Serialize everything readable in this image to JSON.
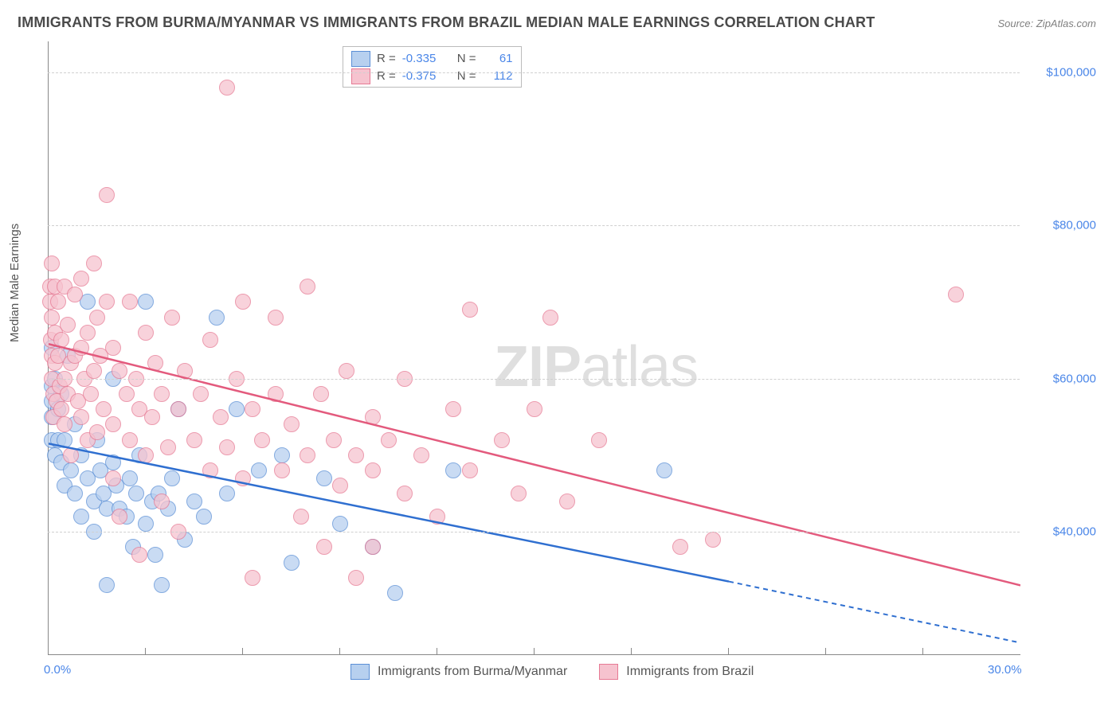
{
  "title": "IMMIGRANTS FROM BURMA/MYANMAR VS IMMIGRANTS FROM BRAZIL MEDIAN MALE EARNINGS CORRELATION CHART",
  "source": "Source: ZipAtlas.com",
  "ylabel": "Median Male Earnings",
  "watermark_left": "ZIP",
  "watermark_right": "atlas",
  "chart": {
    "type": "scatter",
    "xlim": [
      0,
      30
    ],
    "ylim": [
      24000,
      104000
    ],
    "ytick_values": [
      40000,
      60000,
      80000,
      100000
    ],
    "ytick_labels": [
      "$40,000",
      "$60,000",
      "$80,000",
      "$100,000"
    ],
    "xtick_min_label": "0.0%",
    "xtick_max_label": "30.0%",
    "xminor_positions": [
      3,
      6,
      9,
      12,
      15,
      18,
      21,
      24,
      27
    ],
    "grid_color": "#d0d0d0",
    "axis_color": "#888888",
    "background_color": "#ffffff",
    "tick_label_color": "#4a86e8",
    "point_radius": 9
  },
  "series": [
    {
      "key": "burma",
      "label": "Immigrants from Burma/Myanmar",
      "fill": "#b7d0ef",
      "stroke": "#5b8fd6",
      "line_color": "#2f6fd0",
      "R": "-0.335",
      "N": "61",
      "trend": {
        "x1": 0,
        "y1": 51500,
        "x2": 21,
        "y2": 33500,
        "x_dash_to": 30,
        "y_dash_to": 25500
      },
      "points": [
        [
          0.1,
          64000
        ],
        [
          0.1,
          59000
        ],
        [
          0.1,
          57000
        ],
        [
          0.1,
          55000
        ],
        [
          0.1,
          52000
        ],
        [
          0.2,
          50000
        ],
        [
          0.2,
          60000
        ],
        [
          0.3,
          56000
        ],
        [
          0.3,
          52000
        ],
        [
          0.4,
          58000
        ],
        [
          0.4,
          49000
        ],
        [
          0.5,
          52000
        ],
        [
          0.5,
          46000
        ],
        [
          0.6,
          63000
        ],
        [
          0.7,
          48000
        ],
        [
          0.8,
          54000
        ],
        [
          0.8,
          45000
        ],
        [
          1.0,
          50000
        ],
        [
          1.0,
          42000
        ],
        [
          1.2,
          70000
        ],
        [
          1.2,
          47000
        ],
        [
          1.4,
          44000
        ],
        [
          1.4,
          40000
        ],
        [
          1.5,
          52000
        ],
        [
          1.6,
          48000
        ],
        [
          1.7,
          45000
        ],
        [
          1.8,
          43000
        ],
        [
          1.8,
          33000
        ],
        [
          2.0,
          60000
        ],
        [
          2.0,
          49000
        ],
        [
          2.1,
          46000
        ],
        [
          2.2,
          43000
        ],
        [
          2.4,
          42000
        ],
        [
          2.5,
          47000
        ],
        [
          2.6,
          38000
        ],
        [
          2.7,
          45000
        ],
        [
          2.8,
          50000
        ],
        [
          3.0,
          70000
        ],
        [
          3.0,
          41000
        ],
        [
          3.2,
          44000
        ],
        [
          3.3,
          37000
        ],
        [
          3.4,
          45000
        ],
        [
          3.5,
          33000
        ],
        [
          3.7,
          43000
        ],
        [
          3.8,
          47000
        ],
        [
          4.0,
          56000
        ],
        [
          4.2,
          39000
        ],
        [
          4.5,
          44000
        ],
        [
          4.8,
          42000
        ],
        [
          5.2,
          68000
        ],
        [
          5.5,
          45000
        ],
        [
          5.8,
          56000
        ],
        [
          6.5,
          48000
        ],
        [
          7.2,
          50000
        ],
        [
          7.5,
          36000
        ],
        [
          8.5,
          47000
        ],
        [
          9.0,
          41000
        ],
        [
          10.0,
          38000
        ],
        [
          10.7,
          32000
        ],
        [
          12.5,
          48000
        ],
        [
          19.0,
          48000
        ]
      ]
    },
    {
      "key": "brazil",
      "label": "Immigrants from Brazil",
      "fill": "#f6c3cf",
      "stroke": "#e67a94",
      "line_color": "#e35a7d",
      "R": "-0.375",
      "N": "112",
      "trend": {
        "x1": 0,
        "y1": 64500,
        "x2": 30,
        "y2": 33000
      },
      "points": [
        [
          0.05,
          72000
        ],
        [
          0.05,
          70000
        ],
        [
          0.08,
          65000
        ],
        [
          0.1,
          75000
        ],
        [
          0.1,
          68000
        ],
        [
          0.1,
          63000
        ],
        [
          0.1,
          60000
        ],
        [
          0.15,
          58000
        ],
        [
          0.15,
          55000
        ],
        [
          0.2,
          72000
        ],
        [
          0.2,
          66000
        ],
        [
          0.2,
          62000
        ],
        [
          0.25,
          57000
        ],
        [
          0.3,
          70000
        ],
        [
          0.3,
          63000
        ],
        [
          0.35,
          59000
        ],
        [
          0.4,
          65000
        ],
        [
          0.4,
          56000
        ],
        [
          0.5,
          72000
        ],
        [
          0.5,
          60000
        ],
        [
          0.5,
          54000
        ],
        [
          0.6,
          67000
        ],
        [
          0.6,
          58000
        ],
        [
          0.7,
          62000
        ],
        [
          0.7,
          50000
        ],
        [
          0.8,
          71000
        ],
        [
          0.8,
          63000
        ],
        [
          0.9,
          57000
        ],
        [
          1.0,
          73000
        ],
        [
          1.0,
          64000
        ],
        [
          1.0,
          55000
        ],
        [
          1.1,
          60000
        ],
        [
          1.2,
          66000
        ],
        [
          1.2,
          52000
        ],
        [
          1.3,
          58000
        ],
        [
          1.4,
          75000
        ],
        [
          1.4,
          61000
        ],
        [
          1.5,
          68000
        ],
        [
          1.5,
          53000
        ],
        [
          1.6,
          63000
        ],
        [
          1.7,
          56000
        ],
        [
          1.8,
          70000
        ],
        [
          1.8,
          84000
        ],
        [
          2.0,
          64000
        ],
        [
          2.0,
          54000
        ],
        [
          2.0,
          47000
        ],
        [
          2.2,
          61000
        ],
        [
          2.2,
          42000
        ],
        [
          2.4,
          58000
        ],
        [
          2.5,
          70000
        ],
        [
          2.5,
          52000
        ],
        [
          2.7,
          60000
        ],
        [
          2.8,
          56000
        ],
        [
          2.8,
          37000
        ],
        [
          3.0,
          66000
        ],
        [
          3.0,
          50000
        ],
        [
          3.2,
          55000
        ],
        [
          3.3,
          62000
        ],
        [
          3.5,
          58000
        ],
        [
          3.5,
          44000
        ],
        [
          3.7,
          51000
        ],
        [
          3.8,
          68000
        ],
        [
          4.0,
          56000
        ],
        [
          4.0,
          40000
        ],
        [
          4.2,
          61000
        ],
        [
          4.5,
          52000
        ],
        [
          4.7,
          58000
        ],
        [
          5.0,
          48000
        ],
        [
          5.0,
          65000
        ],
        [
          5.3,
          55000
        ],
        [
          5.5,
          98000
        ],
        [
          5.5,
          51000
        ],
        [
          5.8,
          60000
        ],
        [
          6.0,
          70000
        ],
        [
          6.0,
          47000
        ],
        [
          6.3,
          56000
        ],
        [
          6.3,
          34000
        ],
        [
          6.6,
          52000
        ],
        [
          7.0,
          58000
        ],
        [
          7.0,
          68000
        ],
        [
          7.2,
          48000
        ],
        [
          7.5,
          54000
        ],
        [
          7.8,
          42000
        ],
        [
          8.0,
          72000
        ],
        [
          8.0,
          50000
        ],
        [
          8.4,
          58000
        ],
        [
          8.5,
          38000
        ],
        [
          8.8,
          52000
        ],
        [
          9.0,
          46000
        ],
        [
          9.2,
          61000
        ],
        [
          9.5,
          50000
        ],
        [
          9.5,
          34000
        ],
        [
          10.0,
          55000
        ],
        [
          10.0,
          48000
        ],
        [
          10.0,
          38000
        ],
        [
          10.5,
          52000
        ],
        [
          11.0,
          45000
        ],
        [
          11.0,
          60000
        ],
        [
          11.5,
          50000
        ],
        [
          12.0,
          42000
        ],
        [
          12.5,
          56000
        ],
        [
          13.0,
          48000
        ],
        [
          13.0,
          69000
        ],
        [
          14.0,
          52000
        ],
        [
          14.5,
          45000
        ],
        [
          15.0,
          56000
        ],
        [
          15.5,
          68000
        ],
        [
          16.0,
          44000
        ],
        [
          17.0,
          52000
        ],
        [
          19.5,
          38000
        ],
        [
          20.5,
          39000
        ],
        [
          28.0,
          71000
        ]
      ]
    }
  ],
  "legend_labels": {
    "R": "R =",
    "N": "N ="
  }
}
